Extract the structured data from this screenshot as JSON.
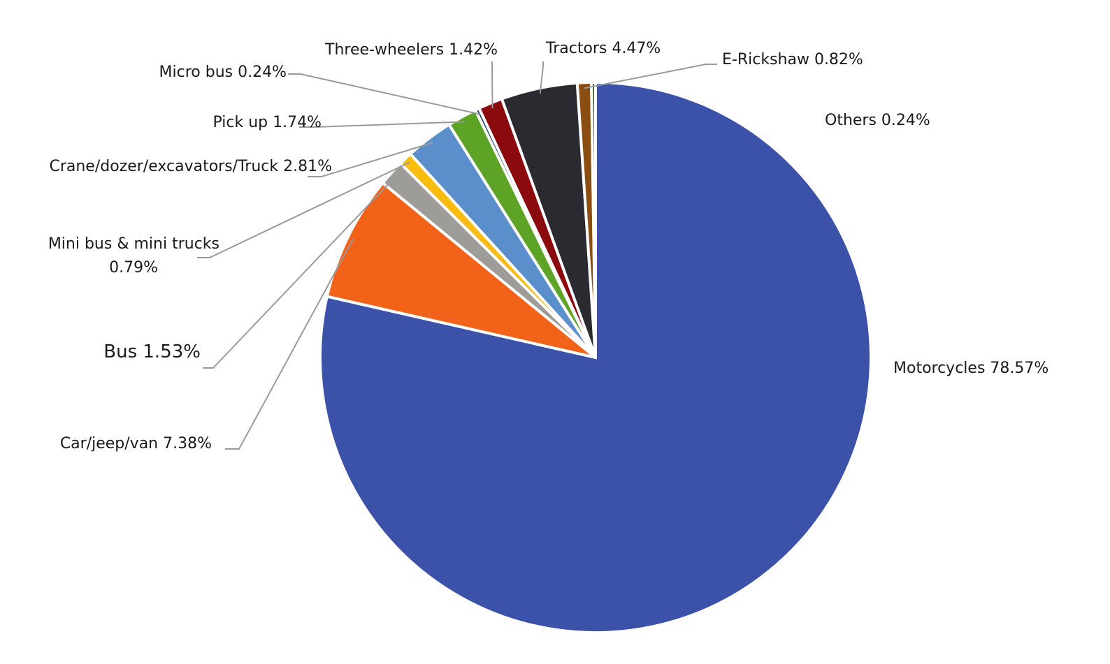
{
  "chart_data": {
    "type": "pie",
    "title": "",
    "start_angle_deg": 0,
    "direction": "clockwise",
    "slices": [
      {
        "label": "Motorcycles 78.57%",
        "value": 78.57,
        "color": "#3b52a8"
      },
      {
        "label": "Car/jeep/van 7.38%",
        "value": 7.38,
        "color": "#f26219"
      },
      {
        "label": "Bus  1.53%",
        "value": 1.53,
        "color": "#9e9c98"
      },
      {
        "label": "Mini bus & mini trucks 0.79%",
        "value": 0.79,
        "color": "#f9bd10"
      },
      {
        "label": "Crane/dozer/excavators/Truck 2.81%",
        "value": 2.81,
        "color": "#5b8fcc"
      },
      {
        "label": "Pick up 1.74%",
        "value": 1.74,
        "color": "#5da325"
      },
      {
        "label": "Micro bus 0.24%",
        "value": 0.24,
        "color": "#1f3a6e"
      },
      {
        "label": "Three-wheelers 1.42%",
        "value": 1.42,
        "color": "#8b0a0e"
      },
      {
        "label": "Tractors  4.47%",
        "value": 4.47,
        "color": "#2b2a30"
      },
      {
        "label": "E-Rickshaw 0.82%",
        "value": 0.82,
        "color": "#8a4d12"
      },
      {
        "label": "Others 0.24%",
        "value": 0.24,
        "color": "#3f6420"
      }
    ],
    "labels": {
      "motorcycles": "Motorcycles 78.57%",
      "car": "Car/jeep/van 7.38%",
      "bus": "Bus  1.53%",
      "minibus_line1": "Mini bus & mini trucks",
      "minibus_line2": "0.79%",
      "crane": "Crane/dozer/excavators/Truck 2.81%",
      "pickup": "Pick up 1.74%",
      "microbus": "Micro bus 0.24%",
      "threewheelers": "Three-wheelers 1.42%",
      "tractors": "Tractors  4.47%",
      "erickshaw": "E-Rickshaw 0.82%",
      "others": "Others 0.24%"
    },
    "legend": "none",
    "grid": false
  }
}
